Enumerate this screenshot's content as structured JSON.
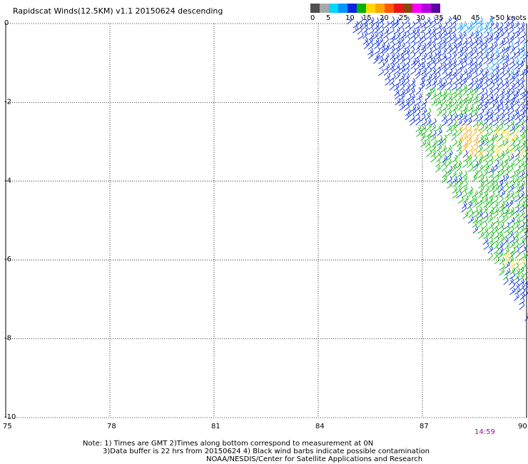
{
  "title": "Rapidscat Winds(12.5KM) v1.1 20150624 descending",
  "time_label": "14:59",
  "notes": {
    "line1": "Note: 1) Times are GMT 2)Times along bottom correspond to measurement at 0N",
    "line2": "3)Data buffer is 22 hrs from 20150624 4) Black wind barbs indicate possible contamination",
    "line3": "NOAA/NESDIS/Center for Satellite Applications and Research"
  },
  "scale": {
    "labels": [
      "0",
      "5",
      "10",
      "15",
      "20",
      "25",
      "30",
      "35",
      "40",
      "45",
      ">50 knots"
    ],
    "colors": [
      "#505050",
      "#a8a8a8",
      "#00d8ff",
      "#0096ff",
      "#0028e0",
      "#00b400",
      "#ffd800",
      "#ffa500",
      "#ff5a00",
      "#e81818",
      "#8b4513",
      "#ff00ff",
      "#b400e0",
      "#5a00a0"
    ]
  },
  "chart_data": {
    "type": "wind-barb-map",
    "x_axis": {
      "range": [
        75,
        90
      ],
      "ticks": [
        "75",
        "78",
        "81",
        "84",
        "87",
        "90"
      ]
    },
    "y_axis": {
      "range": [
        -10,
        0
      ],
      "ticks": [
        "0",
        "-2",
        "-4",
        "-6",
        "-8",
        "-10"
      ]
    },
    "grid": true,
    "swath": {
      "region": "diagonal swath from about (84.8, 0) to (90, -7.8)",
      "dominant_speed_knots": "10-20",
      "colors": {
        "blue": "#0028e0",
        "light_blue": "#0096ff",
        "green": "#00b400",
        "yellow": "#ffd800",
        "orange": "#ffa500"
      }
    }
  }
}
